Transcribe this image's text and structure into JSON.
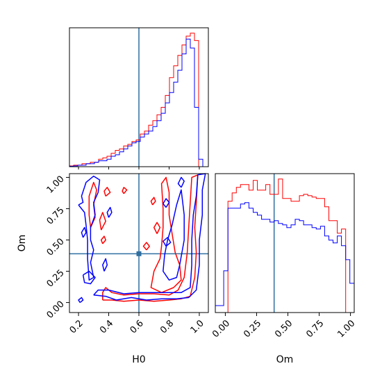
{
  "chart_data": [
    {
      "type": "histogram",
      "panel": "top-left",
      "xlabel": "",
      "ylabel": "",
      "xlim": [
        0.14,
        1.06
      ],
      "truth": 0.6,
      "bin_edges": [
        0.14,
        0.1676,
        0.1952,
        0.2228,
        0.2504,
        0.278,
        0.3056,
        0.3332,
        0.3608,
        0.3884,
        0.416,
        0.4436,
        0.4712,
        0.4988,
        0.5264,
        0.554,
        0.5816,
        0.6092,
        0.6368,
        0.6644,
        0.692,
        0.7196,
        0.7472,
        0.7748,
        0.8024,
        0.83,
        0.8576,
        0.8852,
        0.9128,
        0.9404,
        0.968,
        0.9956,
        1.0232,
        1.0508
      ],
      "series": [
        {
          "color": "#ff0000",
          "values": [
            0.5,
            1,
            1,
            2,
            2,
            3,
            3,
            5,
            6,
            7,
            9,
            11,
            12,
            14,
            15,
            17,
            18,
            22,
            24,
            28,
            31,
            35,
            40,
            48,
            60,
            68,
            75,
            82,
            88,
            90,
            85,
            0,
            0
          ]
        },
        {
          "color": "#0000ff",
          "values": [
            0.3,
            0.5,
            1,
            1,
            2,
            2,
            3,
            4,
            4,
            5,
            7,
            8,
            10,
            12,
            14,
            16,
            17,
            20,
            22,
            24,
            27,
            31,
            36,
            43,
            50,
            57,
            65,
            76,
            86,
            80,
            40,
            5,
            0
          ]
        }
      ]
    },
    {
      "type": "contour",
      "panel": "bottom-left",
      "xlabel": "H0",
      "ylabel": "Om",
      "xlim": [
        0.14,
        1.06
      ],
      "ylim": [
        -0.08,
        1.03
      ],
      "xticks": [
        "0.2",
        "0.4",
        "0.6",
        "0.8",
        "1.0"
      ],
      "yticks": [
        "0.00",
        "0.25",
        "0.50",
        "0.75",
        "1.00"
      ],
      "xtick_values": [
        0.2,
        0.4,
        0.6,
        0.8,
        1.0
      ],
      "ytick_values": [
        0.0,
        0.25,
        0.5,
        0.75,
        1.0
      ],
      "truth": {
        "x": 0.6,
        "y": 0.39
      },
      "series": [
        {
          "color": "#ff0000",
          "contours": [
            [
              [
                0.36,
                0.02
              ],
              [
                0.42,
                0.02
              ],
              [
                0.5,
                0.01
              ],
              [
                0.6,
                0.02
              ],
              [
                0.7,
                0.01
              ],
              [
                0.8,
                0.02
              ],
              [
                0.88,
                0.03
              ],
              [
                0.94,
                0.05
              ],
              [
                0.97,
                0.2
              ],
              [
                0.98,
                0.4
              ],
              [
                0.97,
                0.6
              ],
              [
                0.98,
                0.8
              ],
              [
                0.99,
                1.02
              ],
              [
                0.95,
                1.0
              ],
              [
                0.94,
                0.8
              ],
              [
                0.93,
                0.6
              ],
              [
                0.92,
                0.4
              ],
              [
                0.9,
                0.2
              ],
              [
                0.86,
                0.1
              ],
              [
                0.8,
                0.06
              ],
              [
                0.7,
                0.07
              ],
              [
                0.6,
                0.07
              ],
              [
                0.5,
                0.06
              ],
              [
                0.42,
                0.08
              ],
              [
                0.38,
                0.12
              ],
              [
                0.36,
                0.08
              ],
              [
                0.36,
                0.02
              ]
            ],
            [
              [
                0.83,
                0.12
              ],
              [
                0.88,
                0.18
              ],
              [
                0.87,
                0.3
              ],
              [
                0.84,
                0.4
              ],
              [
                0.82,
                0.55
              ],
              [
                0.8,
                0.7
              ],
              [
                0.8,
                0.88
              ],
              [
                0.78,
                1.0
              ],
              [
                0.75,
                0.95
              ],
              [
                0.76,
                0.75
              ],
              [
                0.76,
                0.6
              ],
              [
                0.75,
                0.45
              ],
              [
                0.74,
                0.35
              ],
              [
                0.7,
                0.25
              ],
              [
                0.68,
                0.12
              ],
              [
                0.75,
                0.08
              ],
              [
                0.83,
                0.12
              ]
            ],
            [
              [
                0.28,
                0.6
              ],
              [
                0.31,
                0.68
              ],
              [
                0.3,
                0.78
              ],
              [
                0.32,
                0.9
              ],
              [
                0.3,
                0.96
              ],
              [
                0.27,
                0.85
              ],
              [
                0.27,
                0.7
              ],
              [
                0.28,
                0.6
              ]
            ],
            [
              [
                0.35,
                0.58
              ],
              [
                0.38,
                0.65
              ],
              [
                0.36,
                0.72
              ],
              [
                0.34,
                0.66
              ],
              [
                0.35,
                0.58
              ]
            ],
            [
              [
                0.38,
                0.85
              ],
              [
                0.41,
                0.88
              ],
              [
                0.39,
                0.92
              ],
              [
                0.37,
                0.89
              ],
              [
                0.38,
                0.85
              ]
            ],
            [
              [
                0.36,
                0.47
              ],
              [
                0.38,
                0.5
              ],
              [
                0.37,
                0.53
              ],
              [
                0.35,
                0.5
              ],
              [
                0.36,
                0.47
              ]
            ],
            [
              [
                0.5,
                0.87
              ],
              [
                0.52,
                0.9
              ],
              [
                0.5,
                0.92
              ],
              [
                0.49,
                0.89
              ],
              [
                0.5,
                0.87
              ]
            ],
            [
              [
                0.69,
                0.78
              ],
              [
                0.71,
                0.81
              ],
              [
                0.7,
                0.84
              ],
              [
                0.68,
                0.81
              ],
              [
                0.69,
                0.78
              ]
            ],
            [
              [
                0.72,
                0.55
              ],
              [
                0.74,
                0.6
              ],
              [
                0.72,
                0.64
              ],
              [
                0.7,
                0.6
              ],
              [
                0.72,
                0.55
              ]
            ],
            [
              [
                0.65,
                0.42
              ],
              [
                0.67,
                0.45
              ],
              [
                0.65,
                0.48
              ],
              [
                0.63,
                0.45
              ],
              [
                0.65,
                0.42
              ]
            ]
          ]
        },
        {
          "color": "#0000ff",
          "contours": [
            [
              [
                0.3,
                0.06
              ],
              [
                0.38,
                0.05
              ],
              [
                0.45,
                0.02
              ],
              [
                0.55,
                0.04
              ],
              [
                0.65,
                0.02
              ],
              [
                0.75,
                0.03
              ],
              [
                0.85,
                0.03
              ],
              [
                0.93,
                0.04
              ],
              [
                0.98,
                0.1
              ],
              [
                1.0,
                0.3
              ],
              [
                1.0,
                0.5
              ],
              [
                1.02,
                0.7
              ],
              [
                1.02,
                0.9
              ],
              [
                1.04,
                1.03
              ],
              [
                0.99,
                1.02
              ],
              [
                0.98,
                0.85
              ],
              [
                0.96,
                0.7
              ],
              [
                0.95,
                0.5
              ],
              [
                0.95,
                0.3
              ],
              [
                0.94,
                0.12
              ],
              [
                0.88,
                0.08
              ],
              [
                0.8,
                0.08
              ],
              [
                0.7,
                0.08
              ],
              [
                0.6,
                0.08
              ],
              [
                0.5,
                0.07
              ],
              [
                0.4,
                0.1
              ],
              [
                0.33,
                0.1
              ],
              [
                0.3,
                0.06
              ]
            ],
            [
              [
                0.2,
                0.78
              ],
              [
                0.23,
                0.8
              ],
              [
                0.22,
                0.85
              ],
              [
                0.25,
                0.96
              ],
              [
                0.3,
                1.01
              ],
              [
                0.34,
                0.98
              ],
              [
                0.33,
                0.88
              ],
              [
                0.3,
                0.8
              ],
              [
                0.31,
                0.7
              ],
              [
                0.28,
                0.6
              ],
              [
                0.28,
                0.5
              ],
              [
                0.3,
                0.42
              ],
              [
                0.28,
                0.32
              ],
              [
                0.3,
                0.2
              ],
              [
                0.27,
                0.18
              ],
              [
                0.26,
                0.35
              ],
              [
                0.26,
                0.5
              ],
              [
                0.25,
                0.62
              ],
              [
                0.24,
                0.72
              ],
              [
                0.2,
                0.78
              ]
            ],
            [
              [
                0.23,
                0.22
              ],
              [
                0.27,
                0.25
              ],
              [
                0.31,
                0.2
              ],
              [
                0.28,
                0.15
              ],
              [
                0.24,
                0.16
              ],
              [
                0.23,
                0.22
              ]
            ],
            [
              [
                0.23,
                0.52
              ],
              [
                0.25,
                0.56
              ],
              [
                0.24,
                0.6
              ],
              [
                0.22,
                0.56
              ],
              [
                0.23,
                0.52
              ]
            ],
            [
              [
                0.21,
                0.0
              ],
              [
                0.23,
                0.02
              ],
              [
                0.22,
                0.04
              ],
              [
                0.2,
                0.02
              ],
              [
                0.21,
                0.0
              ]
            ],
            [
              [
                0.37,
                0.25
              ],
              [
                0.39,
                0.3
              ],
              [
                0.38,
                0.35
              ],
              [
                0.36,
                0.3
              ],
              [
                0.37,
                0.25
              ]
            ],
            [
              [
                0.4,
                0.68
              ],
              [
                0.42,
                0.72
              ],
              [
                0.41,
                0.76
              ],
              [
                0.39,
                0.72
              ],
              [
                0.4,
                0.68
              ]
            ],
            [
              [
                0.87,
                0.3
              ],
              [
                0.9,
                0.5
              ],
              [
                0.9,
                0.7
              ],
              [
                0.88,
                0.9
              ],
              [
                0.85,
                0.78
              ],
              [
                0.82,
                0.62
              ],
              [
                0.79,
                0.5
              ],
              [
                0.77,
                0.38
              ],
              [
                0.76,
                0.25
              ],
              [
                0.8,
                0.18
              ],
              [
                0.85,
                0.2
              ],
              [
                0.87,
                0.3
              ]
            ],
            [
              [
                0.88,
                0.92
              ],
              [
                0.9,
                0.97
              ],
              [
                0.88,
                1.0
              ],
              [
                0.86,
                0.95
              ],
              [
                0.88,
                0.92
              ]
            ],
            [
              [
                0.78,
                0.45
              ],
              [
                0.81,
                0.48
              ],
              [
                0.79,
                0.52
              ],
              [
                0.76,
                0.49
              ],
              [
                0.78,
                0.45
              ]
            ],
            [
              [
                0.78,
                0.76
              ],
              [
                0.8,
                0.8
              ],
              [
                0.78,
                0.83
              ],
              [
                0.76,
                0.79
              ],
              [
                0.78,
                0.76
              ]
            ]
          ]
        }
      ]
    },
    {
      "type": "histogram",
      "panel": "bottom-right",
      "xlabel": "Om",
      "ylabel": "",
      "xlim": [
        -0.08,
        1.03
      ],
      "xticks": [
        "0.00",
        "0.25",
        "0.50",
        "0.75",
        "1.00"
      ],
      "xtick_values": [
        0.0,
        0.25,
        0.5,
        0.75,
        1.0
      ],
      "truth": 0.39,
      "bin_edges": [
        -0.08,
        -0.0464,
        -0.0128,
        0.0208,
        0.0544,
        0.088,
        0.1216,
        0.1552,
        0.1888,
        0.2224,
        0.256,
        0.2896,
        0.3232,
        0.3568,
        0.3904,
        0.424,
        0.4576,
        0.4912,
        0.5248,
        0.5584,
        0.592,
        0.6256,
        0.6592,
        0.6928,
        0.7264,
        0.76,
        0.7936,
        0.8272,
        0.8608,
        0.8944,
        0.928,
        0.9616,
        0.9952,
        1.0288
      ],
      "series": [
        {
          "color": "#ff0000",
          "values": [
            0,
            0,
            0,
            80,
            86,
            90,
            92,
            92,
            88,
            95,
            88,
            88,
            92,
            85,
            85,
            96,
            82,
            82,
            80,
            80,
            84,
            85,
            84,
            83,
            82,
            82,
            76,
            66,
            66,
            57,
            60,
            0,
            0
          ]
        },
        {
          "color": "#0000ff",
          "values": [
            5,
            5,
            30,
            75,
            75,
            75,
            78,
            79,
            75,
            72,
            70,
            67,
            67,
            65,
            66,
            64,
            63,
            61,
            63,
            67,
            66,
            63,
            63,
            61,
            60,
            62,
            55,
            52,
            50,
            55,
            48,
            38,
            21
          ]
        }
      ]
    }
  ]
}
